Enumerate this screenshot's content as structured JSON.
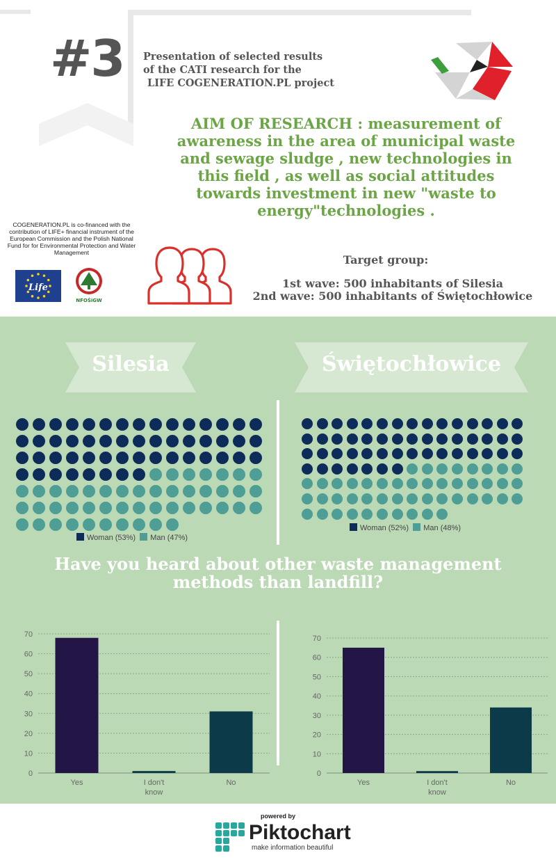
{
  "header": {
    "number": "#3",
    "presentation": [
      "Presentation of selected results",
      "of the CATI research for the",
      "LIFE COGENERATION.PL project"
    ]
  },
  "aim": [
    "AIM OF RESEARCH : measurement of",
    "awareness in the area of municipal waste",
    "and sewage sludge , new technologies in",
    "this field , as well as social attitudes",
    "towards investment in new \"waste to",
    "energy\"technologies ."
  ],
  "cofinance": "COGENERATION.PL is co-financed with the contribution of LIFE+ financial instrument of the European Commission and the Polish National Fund for for Environmental Protection and Water Management",
  "logos": {
    "life": "Life",
    "nfos": "NFOŚiGW"
  },
  "target": {
    "title": "Target group:",
    "wave1": "1st wave: 500 inhabitants of Silesia",
    "wave2": "2nd wave: 500 inhabitants of Świętochłowice"
  },
  "colors": {
    "woman": "#0d2c5a",
    "man": "#4e9e96",
    "bar_yes": "#231546",
    "bar_other": "#0d3a48",
    "aim_green": "#6ba546",
    "people_icon": "#d9302c"
  },
  "chart_data": [
    {
      "type": "waffle",
      "title": "Silesia",
      "series": [
        {
          "name": "Woman (53%)",
          "value": 53
        },
        {
          "name": "Man (47%)",
          "value": 47
        }
      ]
    },
    {
      "type": "waffle",
      "title": "Świętochłowice",
      "series": [
        {
          "name": "Woman (52%)",
          "value": 52
        },
        {
          "name": "Man (48%)",
          "value": 48
        }
      ]
    },
    {
      "type": "bar",
      "title": "Have you heard about other waste management methods than landfill?",
      "categories": [
        "Yes",
        "I don't know",
        "No"
      ],
      "values": [
        68,
        1,
        31
      ],
      "ylim": [
        0,
        70
      ],
      "yticks": [
        0,
        10,
        20,
        30,
        40,
        50,
        60,
        70
      ],
      "grid": true
    },
    {
      "type": "bar",
      "categories": [
        "Yes",
        "I don't know",
        "No"
      ],
      "values": [
        65,
        1,
        34
      ],
      "ylim": [
        0,
        70
      ],
      "yticks": [
        0,
        10,
        20,
        30,
        40,
        50,
        60,
        70
      ],
      "grid": true
    }
  ],
  "footer": {
    "powered": "powered by",
    "brand": "Piktochart",
    "tagline": "make information beautiful"
  }
}
